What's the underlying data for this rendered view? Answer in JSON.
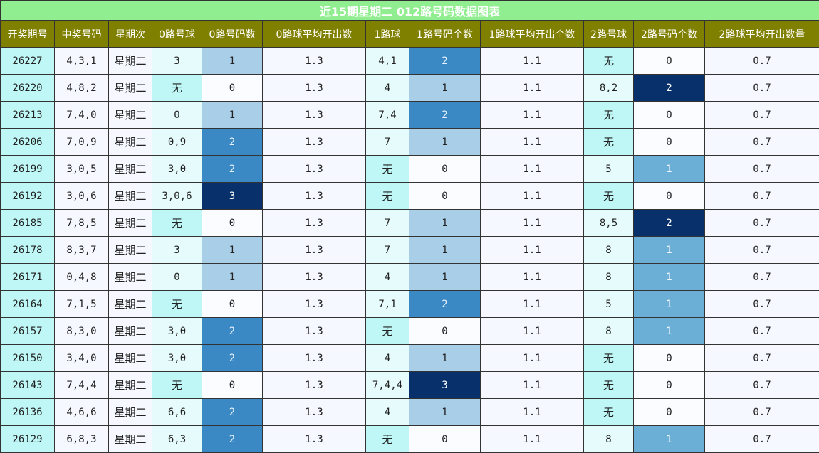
{
  "title": "近15期星期二 012路号码数据图表",
  "headers": [
    "开奖期号",
    "中奖号码",
    "星期次",
    "0路号球",
    "0路号码数",
    "0路球平均开出数",
    "1路球",
    "1路号码个数",
    "1路球平均开出个数",
    "2路号球",
    "2路号码个数",
    "2路球平均开出数量"
  ],
  "rows": [
    {
      "period": "26227",
      "numbers": "4,3,1",
      "weekday": "星期二",
      "r0": "3",
      "r0_count": "1",
      "r0_avg": "1.3",
      "r1": "4,1",
      "r1_count": "2",
      "r1_avg": "1.1",
      "r2": "无",
      "r2_count": "0",
      "r2_avg": "0.7"
    },
    {
      "period": "26220",
      "numbers": "4,8,2",
      "weekday": "星期二",
      "r0": "无",
      "r0_count": "0",
      "r0_avg": "1.3",
      "r1": "4",
      "r1_count": "1",
      "r1_avg": "1.1",
      "r2": "8,2",
      "r2_count": "2",
      "r2_avg": "0.7"
    },
    {
      "period": "26213",
      "numbers": "7,4,0",
      "weekday": "星期二",
      "r0": "0",
      "r0_count": "1",
      "r0_avg": "1.3",
      "r1": "7,4",
      "r1_count": "2",
      "r1_avg": "1.1",
      "r2": "无",
      "r2_count": "0",
      "r2_avg": "0.7"
    },
    {
      "period": "26206",
      "numbers": "7,0,9",
      "weekday": "星期二",
      "r0": "0,9",
      "r0_count": "2",
      "r0_avg": "1.3",
      "r1": "7",
      "r1_count": "1",
      "r1_avg": "1.1",
      "r2": "无",
      "r2_count": "0",
      "r2_avg": "0.7"
    },
    {
      "period": "26199",
      "numbers": "3,0,5",
      "weekday": "星期二",
      "r0": "3,0",
      "r0_count": "2",
      "r0_avg": "1.3",
      "r1": "无",
      "r1_count": "0",
      "r1_avg": "1.1",
      "r2": "5",
      "r2_count": "1",
      "r2_avg": "0.7"
    },
    {
      "period": "26192",
      "numbers": "3,0,6",
      "weekday": "星期二",
      "r0": "3,0,6",
      "r0_count": "3",
      "r0_avg": "1.3",
      "r1": "无",
      "r1_count": "0",
      "r1_avg": "1.1",
      "r2": "无",
      "r2_count": "0",
      "r2_avg": "0.7"
    },
    {
      "period": "26185",
      "numbers": "7,8,5",
      "weekday": "星期二",
      "r0": "无",
      "r0_count": "0",
      "r0_avg": "1.3",
      "r1": "7",
      "r1_count": "1",
      "r1_avg": "1.1",
      "r2": "8,5",
      "r2_count": "2",
      "r2_avg": "0.7"
    },
    {
      "period": "26178",
      "numbers": "8,3,7",
      "weekday": "星期二",
      "r0": "3",
      "r0_count": "1",
      "r0_avg": "1.3",
      "r1": "7",
      "r1_count": "1",
      "r1_avg": "1.1",
      "r2": "8",
      "r2_count": "1",
      "r2_avg": "0.7"
    },
    {
      "period": "26171",
      "numbers": "0,4,8",
      "weekday": "星期二",
      "r0": "0",
      "r0_count": "1",
      "r0_avg": "1.3",
      "r1": "4",
      "r1_count": "1",
      "r1_avg": "1.1",
      "r2": "8",
      "r2_count": "1",
      "r2_avg": "0.7"
    },
    {
      "period": "26164",
      "numbers": "7,1,5",
      "weekday": "星期二",
      "r0": "无",
      "r0_count": "0",
      "r0_avg": "1.3",
      "r1": "7,1",
      "r1_count": "2",
      "r1_avg": "1.1",
      "r2": "5",
      "r2_count": "1",
      "r2_avg": "0.7"
    },
    {
      "period": "26157",
      "numbers": "8,3,0",
      "weekday": "星期二",
      "r0": "3,0",
      "r0_count": "2",
      "r0_avg": "1.3",
      "r1": "无",
      "r1_count": "0",
      "r1_avg": "1.1",
      "r2": "8",
      "r2_count": "1",
      "r2_avg": "0.7"
    },
    {
      "period": "26150",
      "numbers": "3,4,0",
      "weekday": "星期二",
      "r0": "3,0",
      "r0_count": "2",
      "r0_avg": "1.3",
      "r1": "4",
      "r1_count": "1",
      "r1_avg": "1.1",
      "r2": "无",
      "r2_count": "0",
      "r2_avg": "0.7"
    },
    {
      "period": "26143",
      "numbers": "7,4,4",
      "weekday": "星期二",
      "r0": "无",
      "r0_count": "0",
      "r0_avg": "1.3",
      "r1": "7,4,4",
      "r1_count": "3",
      "r1_avg": "1.1",
      "r2": "无",
      "r2_count": "0",
      "r2_avg": "0.7"
    },
    {
      "period": "26136",
      "numbers": "4,6,6",
      "weekday": "星期二",
      "r0": "6,6",
      "r0_count": "2",
      "r0_avg": "1.3",
      "r1": "4",
      "r1_count": "1",
      "r1_avg": "1.1",
      "r2": "无",
      "r2_count": "0",
      "r2_avg": "0.7"
    },
    {
      "period": "26129",
      "numbers": "6,8,3",
      "weekday": "星期二",
      "r0": "6,3",
      "r0_count": "2",
      "r0_avg": "1.3",
      "r1": "无",
      "r1_count": "0",
      "r1_avg": "1.1",
      "r2": "8",
      "r2_count": "1",
      "r2_avg": "0.7"
    }
  ],
  "colors": {
    "title_bg": "#90ee90",
    "header_bg": "#808000",
    "count_0": "#fafcff",
    "count_1_r0_r1": "#a9cfe8",
    "count_1_r2": "#6baed6",
    "count_2_r0_r1": "#3b89c4",
    "count_2_r2": "#08306b",
    "count_3": "#08306b"
  }
}
